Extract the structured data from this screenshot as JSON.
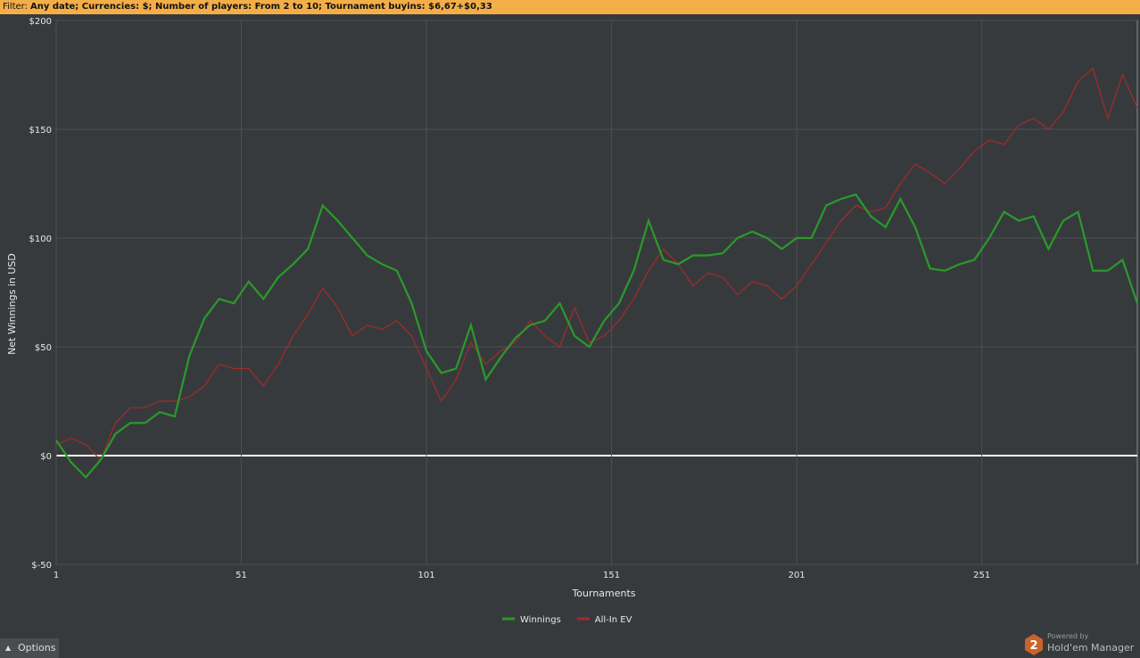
{
  "filter": {
    "label": "Filter:",
    "text": "Any date; Currencies: $; Number of players: From 2 to 10; Tournament buyins: $6,67+$0,33"
  },
  "chart_data": {
    "type": "line",
    "xlabel": "Tournaments",
    "ylabel": "Net Winnings in USD",
    "x": [
      1,
      5,
      9,
      13,
      17,
      21,
      25,
      29,
      33,
      37,
      41,
      45,
      49,
      53,
      57,
      61,
      65,
      69,
      73,
      77,
      81,
      85,
      89,
      93,
      97,
      101,
      105,
      109,
      113,
      117,
      121,
      125,
      129,
      133,
      137,
      141,
      145,
      149,
      153,
      157,
      161,
      165,
      169,
      173,
      177,
      181,
      185,
      189,
      193,
      197,
      201,
      205,
      209,
      213,
      217,
      221,
      225,
      229,
      233,
      237,
      241,
      245,
      249,
      253,
      257,
      261,
      265,
      269,
      273,
      277,
      281,
      285,
      289,
      293
    ],
    "series": [
      {
        "name": "Winnings",
        "color": "#2a9a2a",
        "values": [
          7,
          -3,
          -10,
          -2,
          10,
          15,
          15,
          20,
          18,
          46,
          63,
          72,
          70,
          80,
          72,
          82,
          88,
          95,
          115,
          108,
          100,
          92,
          88,
          85,
          70,
          48,
          38,
          40,
          60,
          35,
          45,
          54,
          60,
          62,
          70,
          55,
          50,
          62,
          70,
          85,
          108,
          90,
          88,
          92,
          92,
          93,
          100,
          103,
          100,
          95,
          100,
          100,
          115,
          118,
          120,
          110,
          105,
          118,
          105,
          86,
          85,
          88,
          90,
          100,
          112,
          108,
          110,
          95,
          108,
          112,
          85,
          85,
          90,
          70
        ]
      },
      {
        "name": "All-In EV",
        "color": "#a52a2a",
        "values": [
          5,
          8,
          5,
          -2,
          15,
          22,
          22,
          25,
          25,
          27,
          32,
          42,
          40,
          40,
          32,
          42,
          55,
          65,
          77,
          68,
          55,
          60,
          58,
          62,
          55,
          40,
          25,
          35,
          52,
          42,
          48,
          52,
          62,
          55,
          50,
          68,
          52,
          55,
          62,
          72,
          85,
          95,
          88,
          78,
          84,
          82,
          74,
          80,
          78,
          72,
          78,
          88,
          98,
          108,
          115,
          112,
          114,
          125,
          134,
          130,
          125,
          132,
          140,
          145,
          143,
          152,
          155,
          150,
          158,
          172,
          178,
          155,
          175,
          160
        ]
      }
    ],
    "xlim": [
      1,
      293
    ],
    "ylim": [
      -50,
      200
    ],
    "xticks": [
      1,
      51,
      101,
      151,
      201,
      251
    ],
    "yticks": [
      {
        "value": -50,
        "label": "$-50"
      },
      {
        "value": 0,
        "label": "$0"
      },
      {
        "value": 50,
        "label": "$50"
      },
      {
        "value": 100,
        "label": "$100"
      },
      {
        "value": 150,
        "label": "$150"
      },
      {
        "value": 200,
        "label": "$200"
      }
    ],
    "grid": true,
    "legend": "bottom"
  },
  "footer": {
    "options": "Options",
    "powered": "Powered by",
    "brand": "Hold'em Manager",
    "logo": "2"
  }
}
